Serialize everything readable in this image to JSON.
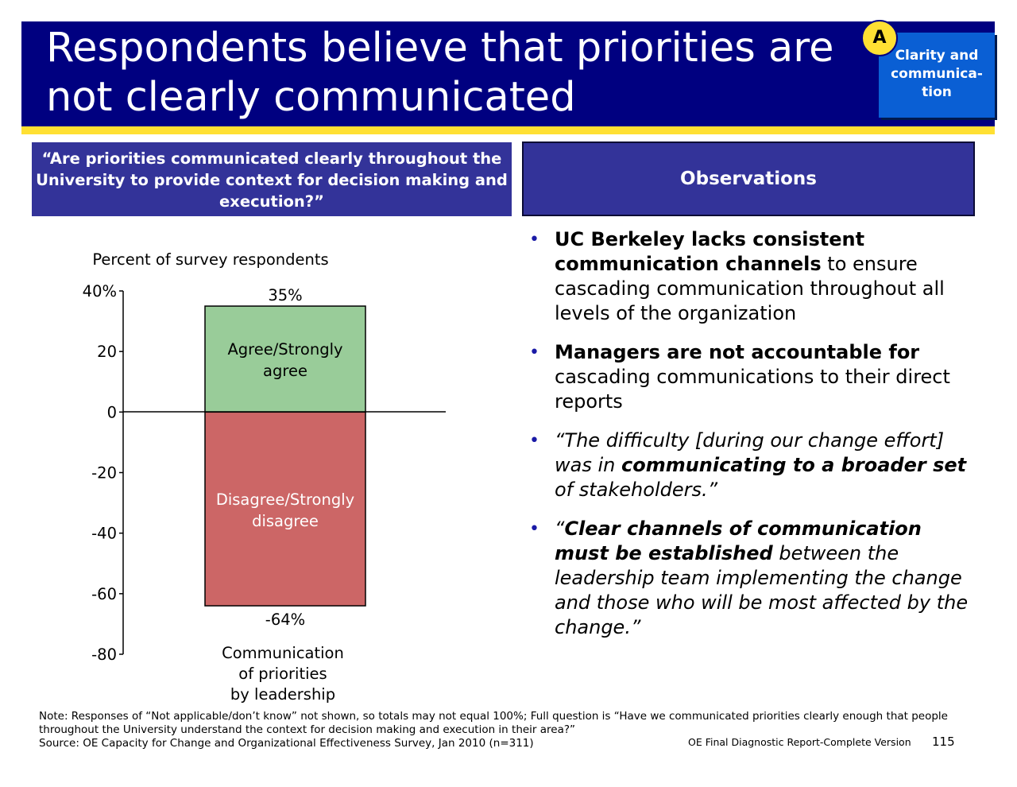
{
  "header": {
    "title": "Respondents believe that priorities are not clearly communicated",
    "section_letter": "A",
    "section_label": "Clarity and communica-tion"
  },
  "question": "“Are priorities communicated clearly throughout the University to provide context for decision making and execution?”",
  "observations_title": "Observations",
  "chart_data": {
    "type": "bar",
    "ylabel": "Percent of survey respondents",
    "ylim": [
      -80,
      40
    ],
    "yticks": [
      "40%",
      "20",
      "0",
      "-20",
      "-40",
      "-60",
      "-80"
    ],
    "category": "Communication of priorities by leadership",
    "category_lines": [
      "Communication",
      "of priorities",
      "by leadership"
    ],
    "series": [
      {
        "name": "Agree/Strongly agree",
        "name_lines": [
          "Agree/Strongly",
          "agree"
        ],
        "value": 35,
        "label": "35%",
        "color": "#99cc99"
      },
      {
        "name": "Disagree/Strongly disagree",
        "name_lines": [
          "Disagree/Strongly",
          "disagree"
        ],
        "value": -64,
        "label": "-64%",
        "color": "#cc6666"
      }
    ]
  },
  "bullets": [
    {
      "bold": "UC Berkeley lacks consistent communication channels",
      "rest": " to ensure cascading communication throughout all levels of the organization"
    },
    {
      "bold": "Managers are not accountable for",
      "rest": " cascading communications to their direct reports"
    },
    {
      "pre": "“The difficulty [during our change effort] was in ",
      "bold": "communicating to a broader set",
      "rest": " of stakeholders.”"
    },
    {
      "pre": "“",
      "bold": "Clear channels of communication must be established",
      "rest": " between the leadership team implementing the change and those who will be most affected by the change.”"
    }
  ],
  "note": "Note: Responses of “Not applicable/don’t know” not shown, so totals may not equal 100%; Full question is “Have we communicated priorities clearly enough that people throughout the University understand the context for decision making and execution in their area?”",
  "source": "Source: OE Capacity for Change and Organizational Effectiveness Survey, Jan 2010 (n=311)",
  "footer": "OE Final Diagnostic Report-Complete Version",
  "page_number": "115",
  "colors": {
    "title_band": "#000080",
    "stripe": "#ffe033",
    "panel": "#333399",
    "tag": "#0a5fd4"
  }
}
